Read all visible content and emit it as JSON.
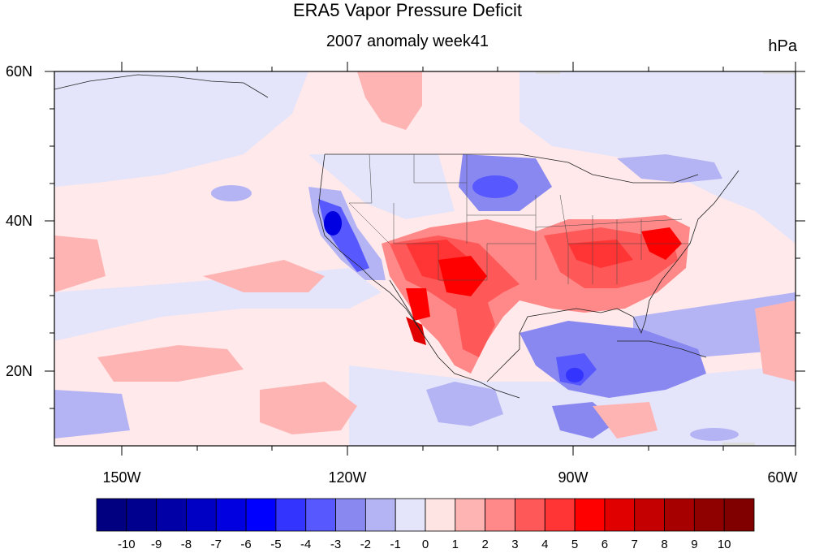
{
  "title": "ERA5 Vapor Pressure Deficit",
  "subtitle": "2007 anomaly week41",
  "units": "hPa",
  "lat_labels": [
    "60N",
    "40N",
    "20N"
  ],
  "lon_labels": [
    "150W",
    "120W",
    "90W",
    "60W"
  ],
  "colorbar": {
    "labels": [
      "-10",
      "-9",
      "-8",
      "-7",
      "-6",
      "-5",
      "-4",
      "-3",
      "-2",
      "-1",
      "0",
      "1",
      "2",
      "3",
      "4",
      "5",
      "6",
      "7",
      "8",
      "9",
      "10"
    ],
    "colors": [
      "#000080",
      "#00008f",
      "#0000a6",
      "#0000c4",
      "#0000e0",
      "#0000ff",
      "#3434ff",
      "#5858ff",
      "#8888f0",
      "#b4b4f4",
      "#e4e4fa",
      "#ffe4e4",
      "#ffb4b4",
      "#ff8888",
      "#ff5858",
      "#ff3434",
      "#ff0000",
      "#e00000",
      "#c40000",
      "#a60000",
      "#8f0000",
      "#800000"
    ]
  },
  "map": {
    "projection": "cylindrical equidistant",
    "lon_range": [
      -160,
      -60
    ],
    "lat_range": [
      10,
      60
    ],
    "features": [
      "coastlines",
      "US state boundaries",
      "national borders"
    ]
  }
}
